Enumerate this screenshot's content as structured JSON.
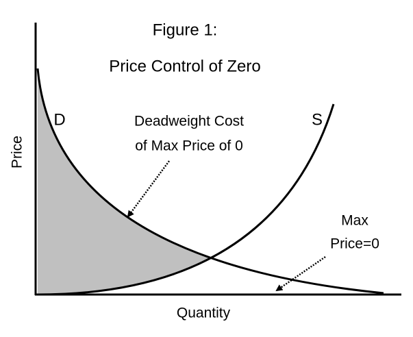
{
  "title": "Figure 1:",
  "subtitle": "Price Control of Zero",
  "x_axis_label": "Quantity",
  "y_axis_label": "Price",
  "demand_label": "D",
  "supply_label": "S",
  "annotations": [
    {
      "lines": [
        "Deadweight Cost",
        "of Max Price of 0"
      ]
    },
    {
      "lines": [
        "Max",
        "Price=0"
      ]
    }
  ]
}
